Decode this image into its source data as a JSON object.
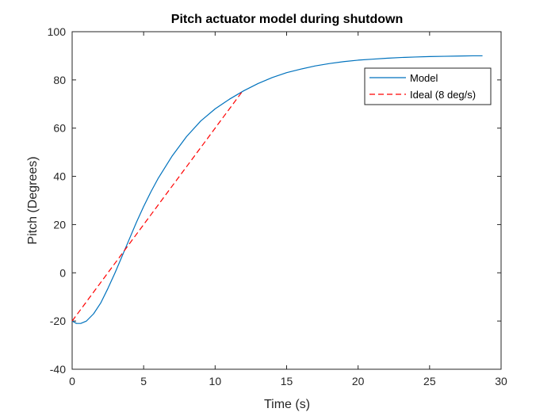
{
  "chart_data": {
    "type": "line",
    "title": "Pitch actuator model during shutdown",
    "xlabel": "Time (s)",
    "ylabel": "Pitch (Degrees)",
    "xlim": [
      0,
      30
    ],
    "ylim": [
      -40,
      100
    ],
    "xticks": [
      0,
      5,
      10,
      15,
      20,
      25,
      30
    ],
    "yticks": [
      -40,
      -20,
      0,
      20,
      40,
      60,
      80,
      100
    ],
    "grid": false,
    "legend_position": "top-right",
    "series": [
      {
        "name": "Model",
        "style": "solid",
        "color": "#0072BD",
        "x": [
          0,
          0.3,
          0.6,
          1,
          1.5,
          2,
          2.5,
          3,
          3.5,
          4,
          4.5,
          5,
          5.5,
          6,
          7,
          8,
          9,
          10,
          11,
          12,
          13,
          14,
          15,
          16,
          17,
          18,
          19,
          20,
          21,
          22,
          23,
          24,
          25,
          26,
          27,
          28,
          28.7
        ],
        "y": [
          -20,
          -21,
          -21,
          -20,
          -17,
          -12.5,
          -6.5,
          0,
          7,
          14,
          21,
          27.5,
          33.5,
          39,
          48.5,
          56.5,
          63,
          68,
          72,
          75.5,
          78.5,
          81,
          83,
          84.5,
          85.8,
          86.8,
          87.6,
          88.2,
          88.6,
          89,
          89.3,
          89.5,
          89.7,
          89.8,
          89.9,
          90,
          90
        ]
      },
      {
        "name": "Ideal (8 deg/s)",
        "style": "dashed",
        "color": "#FF0000",
        "x": [
          0,
          11.9
        ],
        "y": [
          -20,
          75.2
        ]
      }
    ]
  }
}
